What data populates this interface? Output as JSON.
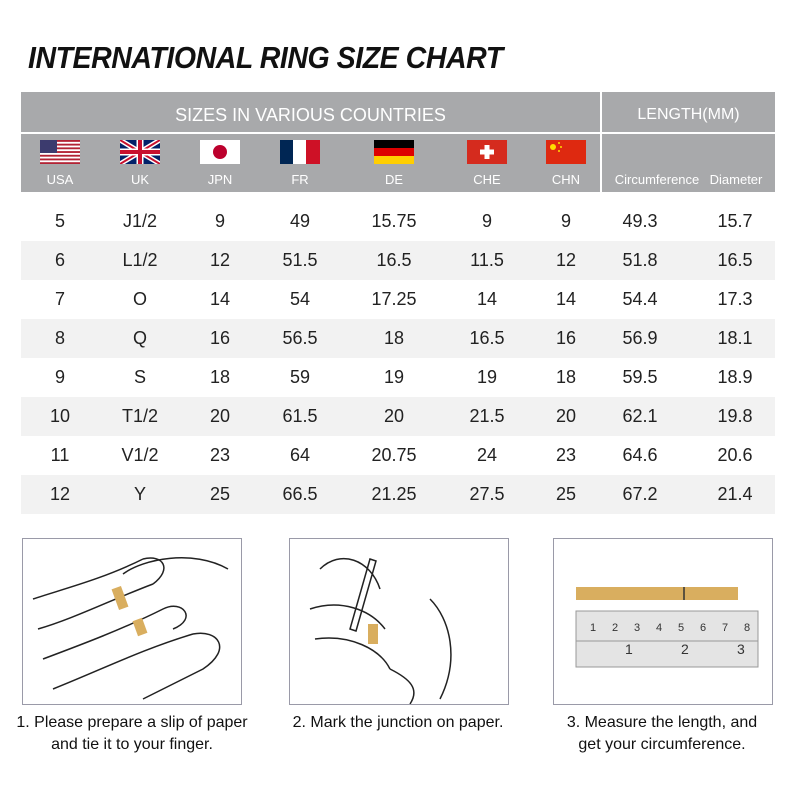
{
  "title": "INTERNATIONAL RING SIZE CHART",
  "header": {
    "sizes_band": "SIZES IN VARIOUS COUNTRIES",
    "length_band": "LENGTH(MM)",
    "countries": [
      {
        "code": "USA",
        "flag": "us-flag"
      },
      {
        "code": "UK",
        "flag": "uk-flag"
      },
      {
        "code": "JPN",
        "flag": "japan-flag"
      },
      {
        "code": "FR",
        "flag": "france-flag"
      },
      {
        "code": "DE",
        "flag": "germany-flag"
      },
      {
        "code": "CHE",
        "flag": "switzerland-flag"
      },
      {
        "code": "CHN",
        "flag": "china-flag"
      }
    ],
    "length_cols": [
      "Circumference",
      "Diameter"
    ]
  },
  "rows": [
    [
      "5",
      "J1/2",
      "9",
      "49",
      "15.75",
      "9",
      "9",
      "49.3",
      "15.7"
    ],
    [
      "6",
      "L1/2",
      "12",
      "51.5",
      "16.5",
      "11.5",
      "12",
      "51.8",
      "16.5"
    ],
    [
      "7",
      "O",
      "14",
      "54",
      "17.25",
      "14",
      "14",
      "54.4",
      "17.3"
    ],
    [
      "8",
      "Q",
      "16",
      "56.5",
      "18",
      "16.5",
      "16",
      "56.9",
      "18.1"
    ],
    [
      "9",
      "S",
      "18",
      "59",
      "19",
      "19",
      "18",
      "59.5",
      "18.9"
    ],
    [
      "10",
      "T1/2",
      "20",
      "61.5",
      "20",
      "21.5",
      "20",
      "62.1",
      "19.8"
    ],
    [
      "11",
      "V1/2",
      "23",
      "64",
      "20.75",
      "24",
      "23",
      "64.6",
      "20.6"
    ],
    [
      "12",
      "Y",
      "25",
      "66.5",
      "21.25",
      "27.5",
      "25",
      "67.2",
      "21.4"
    ]
  ],
  "steps": [
    {
      "line1": "1. Please prepare a slip of paper",
      "line2": "and tie it to your finger."
    },
    {
      "line1": "2. Mark the junction on paper.",
      "line2": ""
    },
    {
      "line1": "3. Measure the length, and",
      "line2": "get your circumference."
    }
  ],
  "ruler": {
    "top_marks": [
      "1",
      "2",
      "3",
      "4",
      "5",
      "6",
      "7",
      "8"
    ],
    "bottom_marks": [
      "1",
      "2",
      "3"
    ]
  },
  "colors": {
    "header": "#a8a9ab",
    "row_alt": "#f2f2f2",
    "paper": "#d9ae5f"
  }
}
